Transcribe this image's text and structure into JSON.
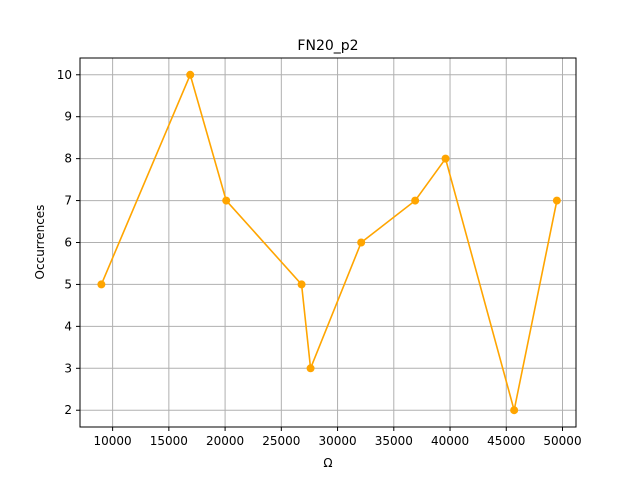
{
  "chart_data": {
    "type": "line",
    "title": "FN20_p2",
    "xlabel": "Ω",
    "ylabel": "Occurrences",
    "xlim": [
      7100,
      51200
    ],
    "ylim": [
      1.6,
      10.4
    ],
    "xticks": [
      10000,
      15000,
      20000,
      25000,
      30000,
      35000,
      40000,
      45000,
      50000
    ],
    "yticks": [
      2,
      3,
      4,
      5,
      6,
      7,
      8,
      9,
      10
    ],
    "grid": true,
    "series": [
      {
        "color": "#ffa500",
        "marker": "circle",
        "points": [
          {
            "x": 9000,
            "y": 5
          },
          {
            "x": 16900,
            "y": 10
          },
          {
            "x": 20100,
            "y": 7
          },
          {
            "x": 26800,
            "y": 5
          },
          {
            "x": 27600,
            "y": 3
          },
          {
            "x": 32100,
            "y": 6
          },
          {
            "x": 36900,
            "y": 7
          },
          {
            "x": 39600,
            "y": 8
          },
          {
            "x": 45700,
            "y": 2
          },
          {
            "x": 49500,
            "y": 7
          }
        ]
      }
    ]
  }
}
